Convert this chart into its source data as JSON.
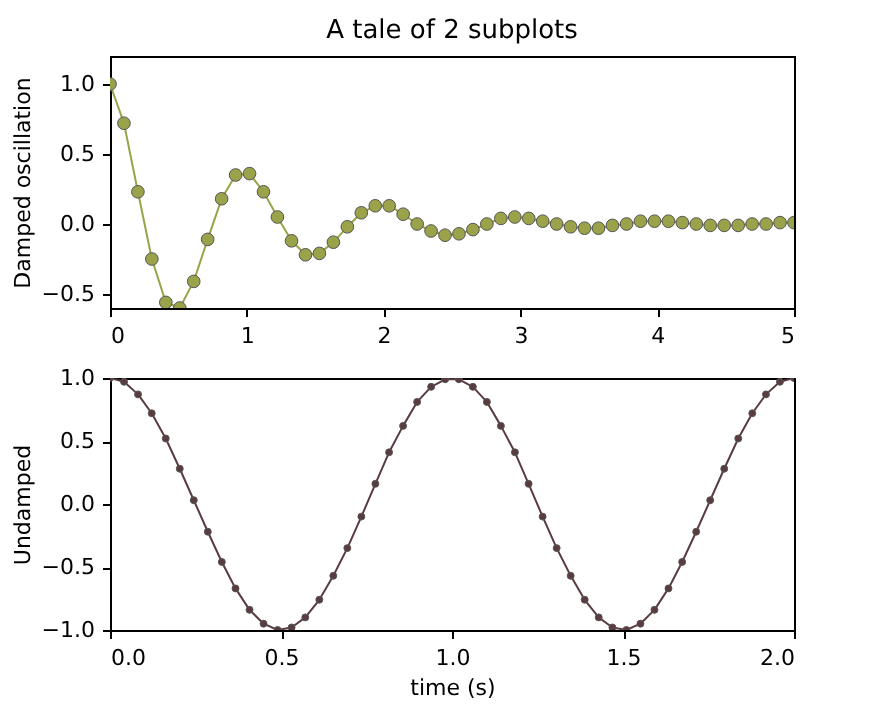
{
  "chart_data": [
    {
      "type": "line",
      "title": "A tale of 2 subplots",
      "ylabel": "Damped oscillation",
      "marker": "circle",
      "line_style": "solid",
      "grid": false,
      "x": [
        0,
        0.102,
        0.204,
        0.306,
        0.408,
        0.51,
        0.612,
        0.714,
        0.816,
        0.918,
        1.02,
        1.122,
        1.224,
        1.327,
        1.429,
        1.531,
        1.633,
        1.735,
        1.837,
        1.939,
        2.041,
        2.143,
        2.245,
        2.347,
        2.449,
        2.551,
        2.653,
        2.755,
        2.857,
        2.959,
        3.061,
        3.163,
        3.265,
        3.367,
        3.469,
        3.571,
        3.673,
        3.776,
        3.878,
        3.98,
        4.082,
        4.184,
        4.286,
        4.388,
        4.49,
        4.592,
        4.694,
        4.796,
        4.898,
        5
      ],
      "series": [
        {
          "color": "#9aa34a",
          "values": [
            1.0,
            0.72,
            0.23,
            -0.25,
            -0.56,
            -0.6,
            -0.41,
            -0.11,
            0.18,
            0.35,
            0.36,
            0.23,
            0.05,
            -0.12,
            -0.22,
            -0.21,
            -0.13,
            -0.02,
            0.08,
            0.13,
            0.13,
            0.07,
            0.0,
            -0.05,
            -0.08,
            -0.07,
            -0.04,
            0.0,
            0.04,
            0.05,
            0.04,
            0.02,
            0.0,
            -0.02,
            -0.03,
            -0.03,
            -0.01,
            0.0,
            0.02,
            0.02,
            0.02,
            0.01,
            0.0,
            -0.01,
            -0.01,
            -0.01,
            0.0,
            0.0,
            0.01,
            0.01
          ]
        }
      ],
      "xlim": [
        0,
        5
      ],
      "xticks": [
        0,
        1,
        2,
        3,
        4,
        5
      ],
      "ylim": [
        -0.6,
        1.2
      ],
      "yticks": [
        {
          "value": -0.5,
          "label": "−0.5"
        },
        {
          "value": 0,
          "label": "0.0"
        },
        0.5,
        {
          "value": 1,
          "label": "1.0"
        }
      ]
    },
    {
      "type": "line",
      "xlabel": "time (s)",
      "ylabel": "Undamped",
      "marker": "circle",
      "line_style": "solid",
      "grid": false,
      "x": [
        0,
        0.041,
        0.082,
        0.122,
        0.163,
        0.204,
        0.245,
        0.286,
        0.327,
        0.367,
        0.408,
        0.449,
        0.49,
        0.531,
        0.571,
        0.612,
        0.653,
        0.694,
        0.735,
        0.776,
        0.816,
        0.857,
        0.898,
        0.939,
        0.98,
        1.02,
        1.061,
        1.102,
        1.143,
        1.184,
        1.224,
        1.265,
        1.306,
        1.347,
        1.388,
        1.429,
        1.469,
        1.51,
        1.551,
        1.592,
        1.633,
        1.673,
        1.714,
        1.755,
        1.796,
        1.837,
        1.878,
        1.918,
        1.959,
        2
      ],
      "series": [
        {
          "color": "#5a3c40",
          "values": [
            1.0,
            0.97,
            0.87,
            0.72,
            0.52,
            0.28,
            0.03,
            -0.22,
            -0.46,
            -0.67,
            -0.84,
            -0.95,
            -1.0,
            -0.98,
            -0.9,
            -0.76,
            -0.57,
            -0.35,
            -0.1,
            0.16,
            0.41,
            0.62,
            0.81,
            0.93,
            0.99,
            0.99,
            0.93,
            0.81,
            0.62,
            0.41,
            0.16,
            -0.1,
            -0.35,
            -0.57,
            -0.76,
            -0.9,
            -0.98,
            -1.0,
            -0.95,
            -0.84,
            -0.67,
            -0.46,
            -0.22,
            0.03,
            0.28,
            0.52,
            0.72,
            0.87,
            0.97,
            1.0
          ]
        }
      ],
      "xlim": [
        0,
        2
      ],
      "xticks": [
        {
          "value": 0,
          "label": "0.0"
        },
        0.5,
        {
          "value": 1,
          "label": "1.0"
        },
        1.5,
        {
          "value": 2,
          "label": "2.0"
        }
      ],
      "ylim": [
        -1,
        1
      ],
      "yticks": [
        {
          "value": -1,
          "label": "−1.0"
        },
        {
          "value": -0.5,
          "label": "−0.5"
        },
        {
          "value": 0,
          "label": "0.0"
        },
        0.5,
        {
          "value": 1,
          "label": "1.0"
        }
      ]
    }
  ]
}
